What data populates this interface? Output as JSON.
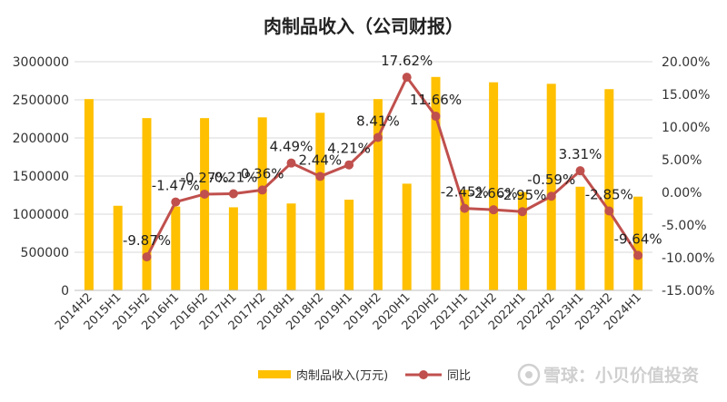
{
  "chart_data": {
    "type": "bar",
    "title": "肉制品收入（公司财报）",
    "categories": [
      "2014H2",
      "2015H1",
      "2015H2",
      "2016H1",
      "2016H2",
      "2017H1",
      "2017H2",
      "2018H1",
      "2018H2",
      "2019H1",
      "2019H2",
      "2020H1",
      "2020H2",
      "2021H1",
      "2021H2",
      "2022H1",
      "2022H2",
      "2023H1",
      "2023H2",
      "2024H1"
    ],
    "series": [
      {
        "name": "肉制品收入(万元)",
        "type": "bar",
        "axis": "left",
        "color": "#FFC000",
        "values": [
          2510000,
          1110000,
          2260000,
          1100000,
          2260000,
          1090000,
          2270000,
          1140000,
          2330000,
          1190000,
          2510000,
          1400000,
          2800000,
          1320000,
          2730000,
          1290000,
          2710000,
          1360000,
          2640000,
          1230000
        ]
      },
      {
        "name": "同比",
        "type": "line",
        "axis": "right",
        "color": "#C0504D",
        "values": [
          null,
          null,
          -9.87,
          -1.47,
          -0.27,
          -0.21,
          0.36,
          4.49,
          2.44,
          4.21,
          8.41,
          17.62,
          11.66,
          -2.45,
          -2.66,
          -2.95,
          -0.59,
          3.31,
          -2.85,
          -9.64
        ],
        "labels": [
          null,
          null,
          "-9.87%",
          "-1.47%",
          "-0.27%",
          "-0.21%",
          "0.36%",
          "4.49%",
          "2.44%",
          "4.21%",
          "8.41%",
          "17.62%",
          "11.66%",
          "-2.45%",
          "-2.66%",
          "-2.95%",
          "-0.59%",
          "3.31%",
          "-2.85%",
          "-9.64%"
        ]
      }
    ],
    "y_left": {
      "min": 0,
      "max": 3000000,
      "ticks": [
        "0",
        "500000",
        "1000000",
        "1500000",
        "2000000",
        "2500000",
        "3000000"
      ]
    },
    "y_right": {
      "min": -15,
      "max": 20,
      "ticks": [
        "-15.00%",
        "-10.00%",
        "-5.00%",
        "0.00%",
        "5.00%",
        "10.00%",
        "15.00%",
        "20.00%"
      ]
    },
    "grid": true,
    "legend": "bottom"
  },
  "watermark": "雪球：小贝价值投资"
}
